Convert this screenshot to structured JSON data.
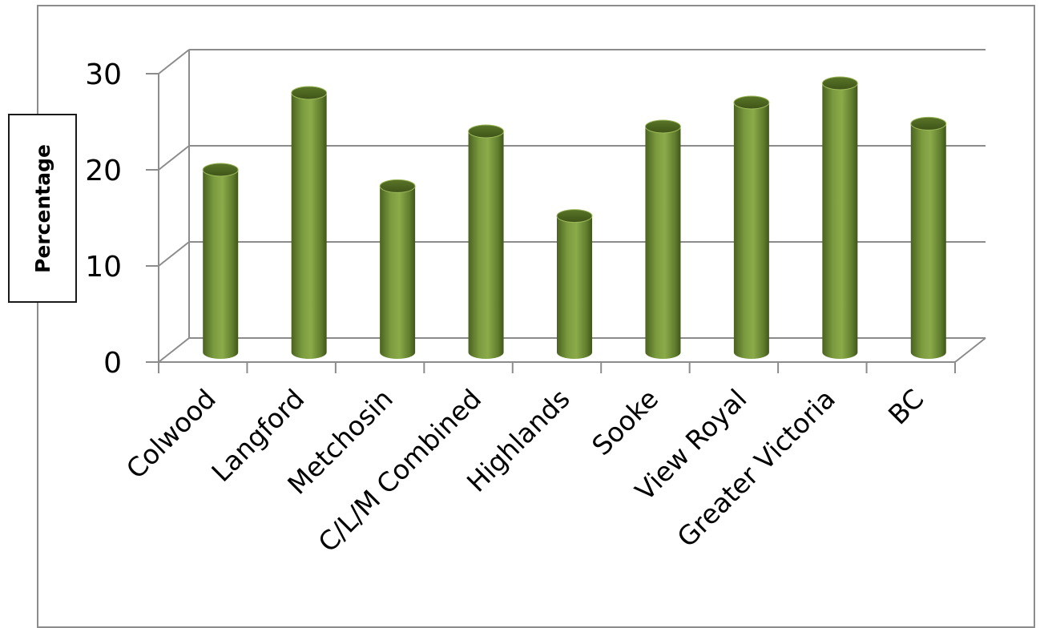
{
  "chart_data": {
    "type": "bar",
    "categories": [
      "Colwood",
      "Langford",
      "Metchosin",
      "C/L/M Combined",
      "Highlands",
      "Sooke",
      "View Royal",
      "Greater Victoria",
      "BC"
    ],
    "values": [
      19,
      27,
      17.3,
      23,
      14.2,
      23.5,
      26,
      28,
      23.8
    ],
    "title": "",
    "xlabel": "",
    "ylabel": "Percentage",
    "ylim": [
      0,
      30
    ],
    "yticks": [
      0,
      10,
      20,
      30
    ],
    "grid": true,
    "legend": "none",
    "bar_color": "#76923c"
  }
}
